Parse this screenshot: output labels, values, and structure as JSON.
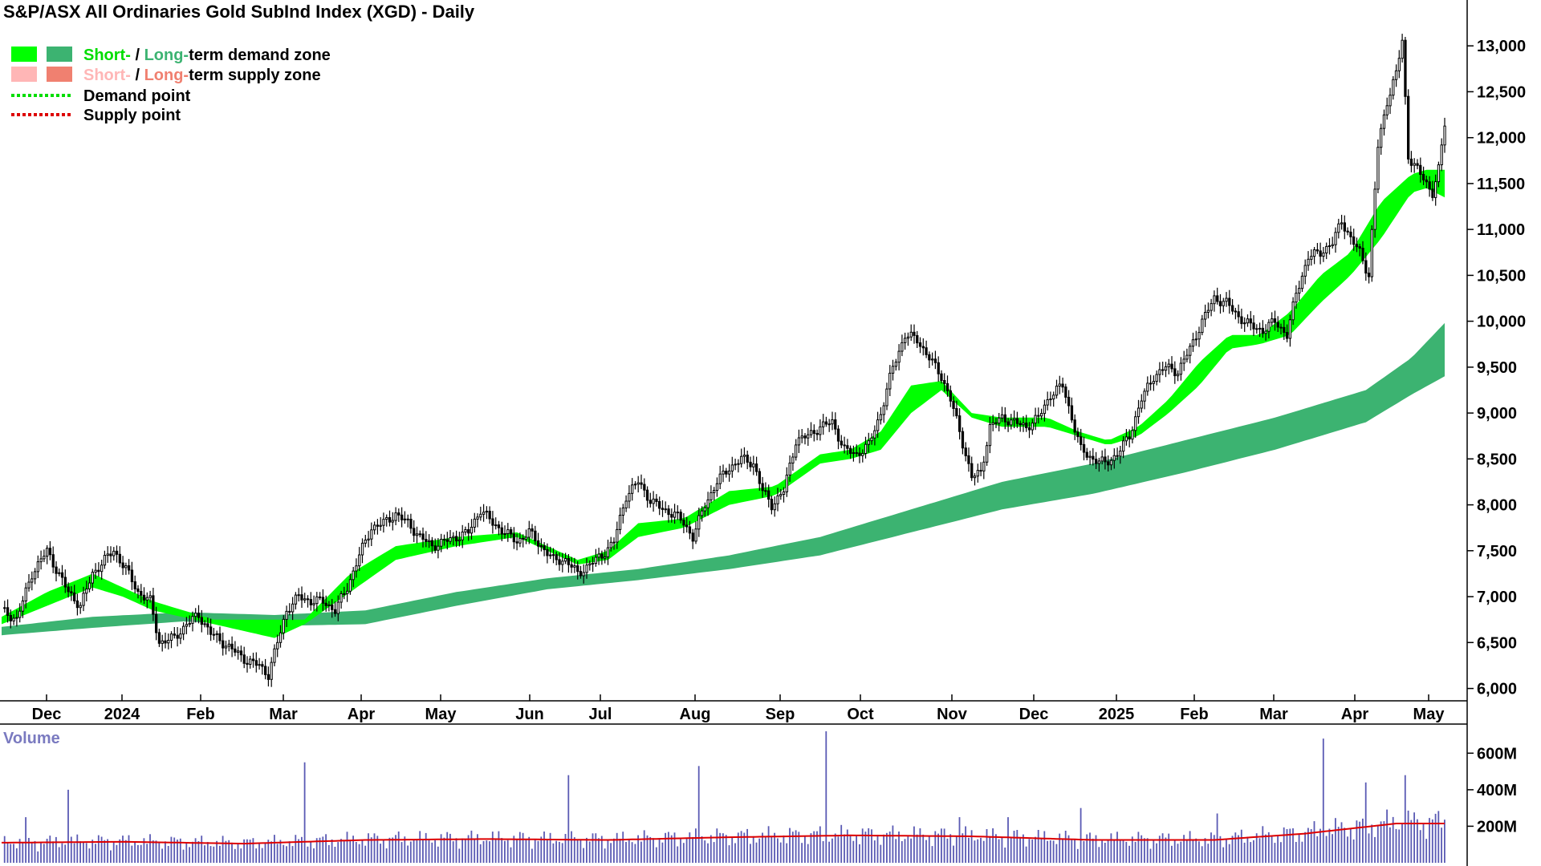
{
  "colors": {
    "short_demand": "#00ff00",
    "long_demand": "#3cb371",
    "short_supply": "#ffb6b6",
    "long_supply": "#f08070",
    "orange_zone": "#ff6a1a",
    "demand_point": "#00dd00",
    "supply_point": "#dd0000",
    "volume_bar": "#5a5ab4",
    "volume_avg": "#dd0000",
    "volume_title": "#7a7ac0"
  },
  "chart_data": {
    "type": "candlestick",
    "title": "S&P/ASX All Ordinaries Gold SubInd Index (XGD) - Daily",
    "legend": {
      "demand_zone": {
        "short": "Short-",
        "sep": " / ",
        "long": "Long-",
        "rest": "term demand zone"
      },
      "supply_zone": {
        "short": "Short-",
        "sep": " / ",
        "long": "Long-",
        "rest": "term supply zone"
      },
      "demand_point": "Demand point",
      "supply_point": "Supply point"
    },
    "x_tick_labels": [
      "Dec",
      "2024",
      "Feb",
      "Mar",
      "Apr",
      "May",
      "Jun",
      "Jul",
      "Aug",
      "Sep",
      "Oct",
      "Nov",
      "Dec",
      "2025",
      "Feb",
      "Mar",
      "Apr",
      "May"
    ],
    "y_ticks": [
      6000,
      6500,
      7000,
      7500,
      8000,
      8500,
      9000,
      9500,
      10000,
      10500,
      11000,
      11500,
      12000,
      12500,
      13000
    ],
    "y_tick_labels": [
      "6,000",
      "6,500",
      "7,000",
      "7,500",
      "8,000",
      "8,500",
      "9,000",
      "9,500",
      "10,000",
      "10,500",
      "11,000",
      "11,500",
      "12,000",
      "12,500",
      "13,000"
    ],
    "ylim": [
      5900,
      13150
    ],
    "price_closes": [
      [
        0,
        6850
      ],
      [
        5,
        6750
      ],
      [
        10,
        7250
      ],
      [
        15,
        7500
      ],
      [
        18,
        7300
      ],
      [
        22,
        7050
      ],
      [
        26,
        6900
      ],
      [
        30,
        7250
      ],
      [
        34,
        7400
      ],
      [
        37,
        7500
      ],
      [
        41,
        7300
      ],
      [
        45,
        7050
      ],
      [
        49,
        6950
      ],
      [
        52,
        6500
      ],
      [
        57,
        6550
      ],
      [
        61,
        6700
      ],
      [
        65,
        6800
      ],
      [
        69,
        6600
      ],
      [
        73,
        6500
      ],
      [
        77,
        6400
      ],
      [
        81,
        6300
      ],
      [
        85,
        6250
      ],
      [
        88,
        6150
      ],
      [
        91,
        6500
      ],
      [
        94,
        6850
      ],
      [
        98,
        7000
      ],
      [
        102,
        6950
      ],
      [
        106,
        6950
      ],
      [
        110,
        6850
      ],
      [
        114,
        7100
      ],
      [
        118,
        7450
      ],
      [
        122,
        7750
      ],
      [
        126,
        7800
      ],
      [
        130,
        7900
      ],
      [
        134,
        7800
      ],
      [
        138,
        7650
      ],
      [
        142,
        7550
      ],
      [
        146,
        7600
      ],
      [
        150,
        7650
      ],
      [
        154,
        7700
      ],
      [
        158,
        7950
      ],
      [
        162,
        7800
      ],
      [
        166,
        7700
      ],
      [
        170,
        7600
      ],
      [
        174,
        7700
      ],
      [
        178,
        7550
      ],
      [
        182,
        7400
      ],
      [
        186,
        7400
      ],
      [
        190,
        7250
      ],
      [
        194,
        7350
      ],
      [
        198,
        7450
      ],
      [
        202,
        7600
      ],
      [
        206,
        8100
      ],
      [
        210,
        8250
      ],
      [
        214,
        8050
      ],
      [
        218,
        7950
      ],
      [
        222,
        7900
      ],
      [
        225,
        7800
      ],
      [
        228,
        7650
      ],
      [
        232,
        8000
      ],
      [
        236,
        8250
      ],
      [
        240,
        8400
      ],
      [
        244,
        8500
      ],
      [
        248,
        8450
      ],
      [
        251,
        8150
      ],
      [
        254,
        8000
      ],
      [
        258,
        8150
      ],
      [
        262,
        8700
      ],
      [
        266,
        8750
      ],
      [
        270,
        8850
      ],
      [
        274,
        8900
      ],
      [
        278,
        8600
      ],
      [
        282,
        8550
      ],
      [
        286,
        8650
      ],
      [
        290,
        9000
      ],
      [
        294,
        9500
      ],
      [
        298,
        9850
      ],
      [
        302,
        9800
      ],
      [
        306,
        9600
      ],
      [
        310,
        9400
      ],
      [
        313,
        9150
      ],
      [
        316,
        8800
      ],
      [
        320,
        8300
      ],
      [
        323,
        8350
      ],
      [
        326,
        8850
      ],
      [
        330,
        8950
      ],
      [
        334,
        8900
      ],
      [
        338,
        8850
      ],
      [
        342,
        8950
      ],
      [
        346,
        9200
      ],
      [
        350,
        9300
      ],
      [
        353,
        8950
      ],
      [
        356,
        8600
      ],
      [
        360,
        8500
      ],
      [
        364,
        8450
      ],
      [
        368,
        8550
      ],
      [
        372,
        8750
      ],
      [
        376,
        9150
      ],
      [
        380,
        9400
      ],
      [
        384,
        9500
      ],
      [
        388,
        9450
      ],
      [
        392,
        9700
      ],
      [
        396,
        10000
      ],
      [
        400,
        10250
      ],
      [
        404,
        10200
      ],
      [
        408,
        10050
      ],
      [
        412,
        9950
      ],
      [
        416,
        9900
      ],
      [
        420,
        10000
      ],
      [
        424,
        9850
      ],
      [
        427,
        10300
      ],
      [
        431,
        10700
      ],
      [
        435,
        10750
      ],
      [
        439,
        10850
      ],
      [
        442,
        11100
      ],
      [
        445,
        10900
      ],
      [
        448,
        10750
      ],
      [
        451,
        10500
      ],
      [
        454,
        11900
      ],
      [
        457,
        12400
      ],
      [
        460,
        12700
      ],
      [
        462,
        13050
      ],
      [
        464,
        11800
      ],
      [
        467,
        11650
      ],
      [
        470,
        11500
      ],
      [
        472,
        11400
      ],
      [
        474,
        11650
      ],
      [
        476,
        12150
      ]
    ],
    "short_zone_upper": [
      [
        0,
        6780
      ],
      [
        15,
        7050
      ],
      [
        30,
        7250
      ],
      [
        40,
        7100
      ],
      [
        50,
        6950
      ],
      [
        70,
        6750
      ],
      [
        90,
        6750
      ],
      [
        100,
        6750
      ],
      [
        115,
        7250
      ],
      [
        130,
        7550
      ],
      [
        150,
        7650
      ],
      [
        170,
        7700
      ],
      [
        190,
        7400
      ],
      [
        200,
        7500
      ],
      [
        210,
        7800
      ],
      [
        225,
        7850
      ],
      [
        240,
        8150
      ],
      [
        255,
        8200
      ],
      [
        270,
        8550
      ],
      [
        280,
        8600
      ],
      [
        290,
        8800
      ],
      [
        300,
        9300
      ],
      [
        310,
        9350
      ],
      [
        320,
        9000
      ],
      [
        330,
        8950
      ],
      [
        345,
        8950
      ],
      [
        355,
        8800
      ],
      [
        365,
        8700
      ],
      [
        375,
        8850
      ],
      [
        385,
        9150
      ],
      [
        395,
        9550
      ],
      [
        405,
        9850
      ],
      [
        415,
        9850
      ],
      [
        425,
        10100
      ],
      [
        435,
        10500
      ],
      [
        445,
        10750
      ],
      [
        455,
        11300
      ],
      [
        465,
        11600
      ],
      [
        470,
        11650
      ],
      [
        476,
        11650
      ]
    ],
    "short_zone_lower": [
      [
        0,
        6700
      ],
      [
        15,
        6900
      ],
      [
        30,
        7100
      ],
      [
        40,
        7000
      ],
      [
        50,
        6850
      ],
      [
        70,
        6700
      ],
      [
        90,
        6550
      ],
      [
        100,
        6700
      ],
      [
        115,
        7050
      ],
      [
        130,
        7400
      ],
      [
        150,
        7550
      ],
      [
        170,
        7650
      ],
      [
        190,
        7350
      ],
      [
        200,
        7400
      ],
      [
        210,
        7650
      ],
      [
        225,
        7750
      ],
      [
        240,
        8000
      ],
      [
        255,
        8100
      ],
      [
        270,
        8450
      ],
      [
        280,
        8500
      ],
      [
        290,
        8600
      ],
      [
        300,
        9000
      ],
      [
        310,
        9250
      ],
      [
        320,
        8950
      ],
      [
        330,
        8850
      ],
      [
        345,
        8850
      ],
      [
        355,
        8750
      ],
      [
        365,
        8650
      ],
      [
        375,
        8750
      ],
      [
        385,
        9000
      ],
      [
        395,
        9300
      ],
      [
        405,
        9700
      ],
      [
        415,
        9750
      ],
      [
        425,
        9850
      ],
      [
        435,
        10200
      ],
      [
        445,
        10500
      ],
      [
        455,
        10900
      ],
      [
        465,
        11400
      ],
      [
        470,
        11450
      ],
      [
        476,
        11350
      ]
    ],
    "long_zone_upper": [
      [
        0,
        6670
      ],
      [
        30,
        6780
      ],
      [
        60,
        6830
      ],
      [
        90,
        6800
      ],
      [
        120,
        6850
      ],
      [
        150,
        7050
      ],
      [
        180,
        7200
      ],
      [
        210,
        7300
      ],
      [
        240,
        7450
      ],
      [
        270,
        7650
      ],
      [
        300,
        7950
      ],
      [
        330,
        8250
      ],
      [
        360,
        8450
      ],
      [
        390,
        8700
      ],
      [
        420,
        8950
      ],
      [
        450,
        9250
      ],
      [
        465,
        9600
      ],
      [
        476,
        9980
      ]
    ],
    "long_zone_lower": [
      [
        0,
        6580
      ],
      [
        30,
        6660
      ],
      [
        60,
        6730
      ],
      [
        90,
        6680
      ],
      [
        120,
        6700
      ],
      [
        150,
        6900
      ],
      [
        180,
        7080
      ],
      [
        210,
        7180
      ],
      [
        240,
        7300
      ],
      [
        270,
        7450
      ],
      [
        300,
        7700
      ],
      [
        330,
        7950
      ],
      [
        360,
        8120
      ],
      [
        390,
        8350
      ],
      [
        420,
        8600
      ],
      [
        450,
        8900
      ],
      [
        465,
        9200
      ],
      [
        476,
        9400
      ]
    ],
    "volume": {
      "title": "Volume",
      "y_ticks": [
        200,
        400,
        600
      ],
      "y_tick_labels": [
        "200M",
        "400M",
        "600M"
      ],
      "ylim": [
        0,
        720
      ],
      "spikes": [
        [
          8,
          250
        ],
        [
          22,
          400
        ],
        [
          100,
          550
        ],
        [
          187,
          480
        ],
        [
          230,
          530
        ],
        [
          272,
          720
        ],
        [
          316,
          250
        ],
        [
          332,
          250
        ],
        [
          356,
          300
        ],
        [
          401,
          270
        ],
        [
          436,
          680
        ],
        [
          450,
          440
        ],
        [
          463,
          480
        ]
      ],
      "moving_average": [
        [
          0,
          110
        ],
        [
          40,
          115
        ],
        [
          80,
          105
        ],
        [
          120,
          125
        ],
        [
          160,
          130
        ],
        [
          200,
          125
        ],
        [
          240,
          140
        ],
        [
          280,
          150
        ],
        [
          320,
          145
        ],
        [
          360,
          125
        ],
        [
          400,
          125
        ],
        [
          430,
          160
        ],
        [
          460,
          215
        ],
        [
          476,
          215
        ]
      ]
    }
  }
}
